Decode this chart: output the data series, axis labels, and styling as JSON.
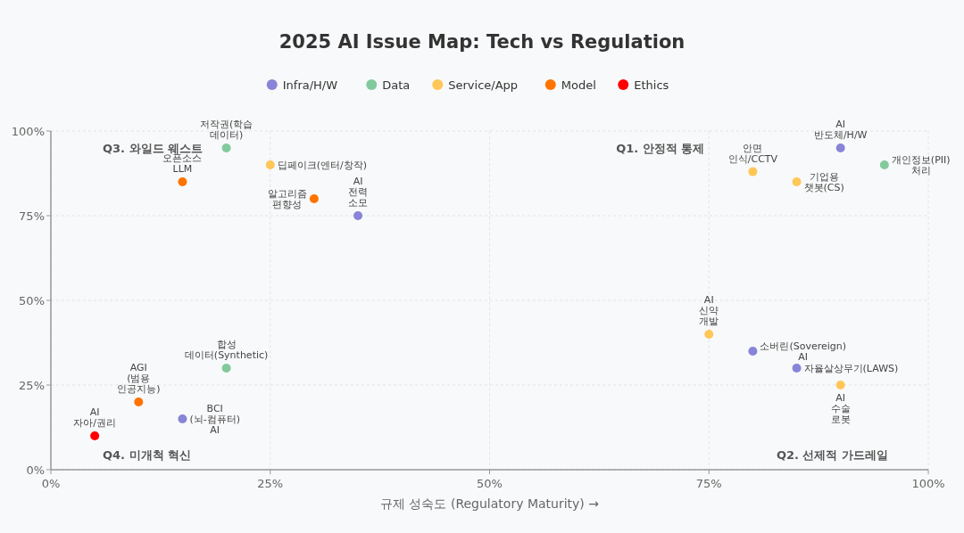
{
  "chart_data": {
    "type": "scatter",
    "title": "2025 AI Issue Map: Tech vs Regulation",
    "xlabel": "규제 성숙도 (Regulatory Maturity) →",
    "xlim": [
      0,
      100
    ],
    "ylim": [
      0,
      100
    ],
    "xticks": [
      {
        "value": 0,
        "label": "0%"
      },
      {
        "value": 25,
        "label": "25%"
      },
      {
        "value": 50,
        "label": "50%"
      },
      {
        "value": 75,
        "label": "75%"
      },
      {
        "value": 100,
        "label": "100%"
      }
    ],
    "yticks": [
      {
        "value": 0,
        "label": "0%"
      },
      {
        "value": 25,
        "label": "25%"
      },
      {
        "value": 50,
        "label": "50%"
      },
      {
        "value": 75,
        "label": "75%"
      },
      {
        "value": 100,
        "label": "100%"
      }
    ],
    "grid": true,
    "legend": "top",
    "marker": "circle",
    "series": [
      {
        "name": "Infra/H/W",
        "color": "#8884d8",
        "x": [
          90,
          35,
          80,
          85,
          15
        ],
        "values": [
          95,
          75,
          35,
          30,
          15
        ]
      },
      {
        "name": "Data",
        "color": "#82ca9d",
        "x": [
          20,
          95,
          20
        ],
        "values": [
          95,
          90,
          30
        ]
      },
      {
        "name": "Service/App",
        "color": "#ffc658",
        "x": [
          25,
          80,
          85,
          75,
          90
        ],
        "values": [
          90,
          88,
          85,
          40,
          25
        ]
      },
      {
        "name": "Model",
        "color": "#ff7300",
        "x": [
          15,
          30,
          10
        ],
        "values": [
          85,
          80,
          20
        ]
      },
      {
        "name": "Ethics",
        "color": "#ff0000",
        "x": [
          5
        ],
        "values": [
          10
        ]
      }
    ],
    "annotations": [
      "Q1. 안정적 통제",
      "Q2. 선제적 가드레일",
      "Q3. 와일드 웨스트",
      "Q4. 미개척 혁신",
      {
        "text": "AI 반도체/H/W",
        "x": 90,
        "y": 95
      },
      {
        "text": "AI 전력 소모",
        "x": 35,
        "y": 75
      },
      {
        "text": "소버린(Sovereign) AI",
        "x": 80,
        "y": 35
      },
      {
        "text": "자율살상무기(LAWS)",
        "x": 85,
        "y": 30
      },
      {
        "text": "저작권(학습 데이터)",
        "x": 20,
        "y": 95
      },
      {
        "text": "개인정보(PII) 처리",
        "x": 95,
        "y": 90
      },
      {
        "text": "합성 데이터(Synthetic)",
        "x": 20,
        "y": 30
      },
      {
        "text": "딥페이크(엔터/창작)",
        "x": 25,
        "y": 90
      },
      {
        "text": "안면 인식/CCTV",
        "x": 80,
        "y": 88
      },
      {
        "text": "기업용 챗봇(CS)",
        "x": 85,
        "y": 85
      },
      {
        "text": "AI 신약 개발",
        "x": 75,
        "y": 40
      },
      {
        "text": "AI 수술 로봇",
        "x": 90,
        "y": 25
      },
      {
        "text": "오픈소스 LLM",
        "x": 15,
        "y": 85
      },
      {
        "text": "알고리즘 편향성",
        "x": 30,
        "y": 80
      },
      {
        "text": "AI 자아/권리",
        "x": 5,
        "y": 10
      },
      {
        "text": "AGI (범용 인공지능)",
        "x": 10,
        "y": 20
      },
      {
        "text": "BCI (뇌-컴퓨터) AI",
        "x": 15,
        "y": 15
      }
    ]
  }
}
